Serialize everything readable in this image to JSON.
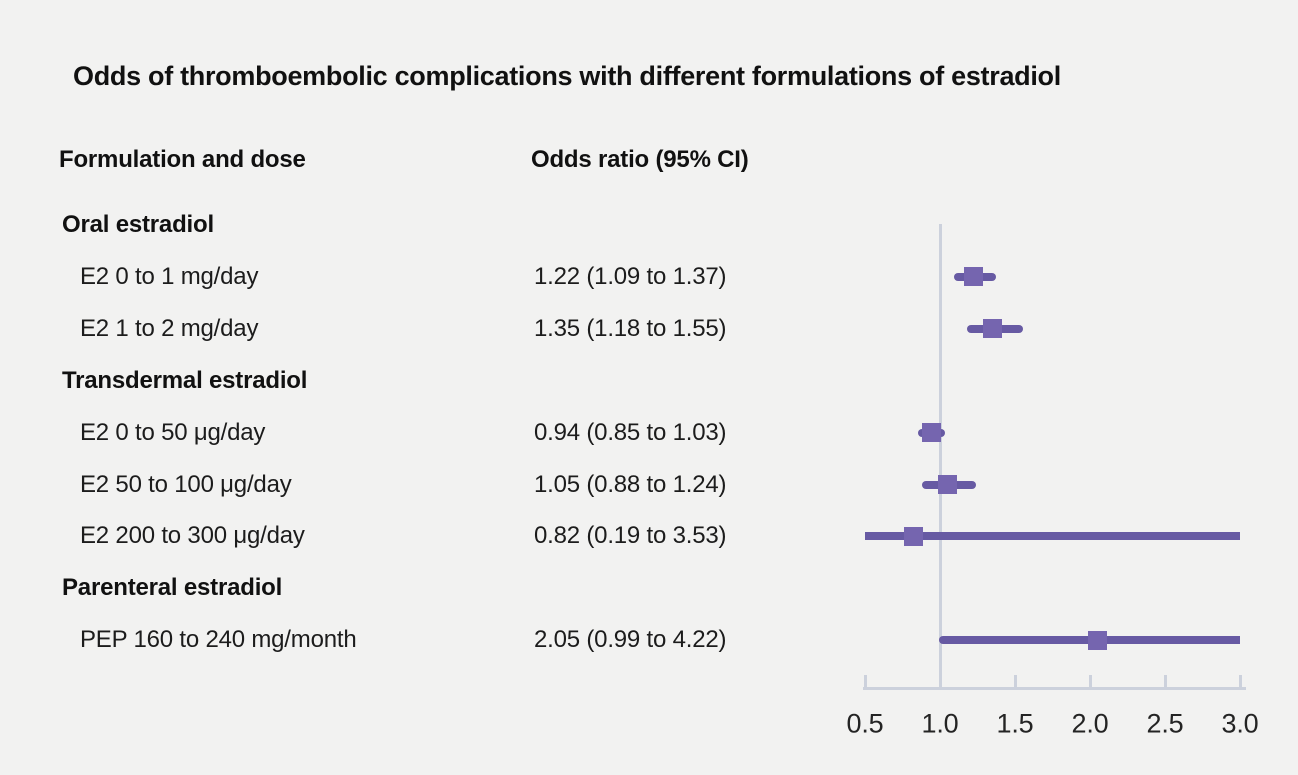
{
  "chart_data": {
    "type": "scatter",
    "subtype": "forest-plot",
    "title": "Odds of thromboembolic complications with different formulations of estradiol",
    "columns": {
      "formulation": "Formulation and dose",
      "odds_ratio": "Odds ratio (95% CI)"
    },
    "rows": [
      {
        "kind": "group",
        "label": "Oral estradiol"
      },
      {
        "kind": "item",
        "label": "E2 0 to 1 mg/day",
        "or_text": "1.22 (1.09 to 1.37)",
        "est": 1.22,
        "lo": 1.09,
        "hi": 1.37
      },
      {
        "kind": "item",
        "label": "E2 1 to 2 mg/day",
        "or_text": "1.35 (1.18 to 1.55)",
        "est": 1.35,
        "lo": 1.18,
        "hi": 1.55
      },
      {
        "kind": "group",
        "label": "Transdermal estradiol"
      },
      {
        "kind": "item",
        "label": "E2 0 to 50 μg/day",
        "or_text": "0.94 (0.85 to 1.03)",
        "est": 0.94,
        "lo": 0.85,
        "hi": 1.03
      },
      {
        "kind": "item",
        "label": "E2 50 to 100 μg/day",
        "or_text": "1.05 (0.88 to 1.24)",
        "est": 1.05,
        "lo": 0.88,
        "hi": 1.24
      },
      {
        "kind": "item",
        "label": "E2 200 to 300 μg/day",
        "or_text": "0.82 (0.19 to 3.53)",
        "est": 0.82,
        "lo": 0.19,
        "hi": 3.53
      },
      {
        "kind": "group",
        "label": "Parenteral estradiol"
      },
      {
        "kind": "item",
        "label": "PEP 160 to 240 mg/month",
        "or_text": "2.05 (0.99 to 4.22)",
        "est": 2.05,
        "lo": 0.99,
        "hi": 4.22
      }
    ],
    "x_axis": {
      "ticks": [
        0.5,
        1.0,
        1.5,
        2.0,
        2.5,
        3.0
      ],
      "tick_labels": [
        "0.5",
        "1.0",
        "1.5",
        "2.0",
        "2.5",
        "3.0"
      ],
      "xlim": [
        0.5,
        3.0
      ],
      "reference_line": 1.0,
      "clip_to_xlim": true
    },
    "legend": "none",
    "grid": "off",
    "colors": {
      "background": "#f2f2f1",
      "ci_line": "#675aa3",
      "estimate_marker": "#7565af",
      "axis": "#ccd1dc",
      "text": "#1a1a1a"
    }
  }
}
